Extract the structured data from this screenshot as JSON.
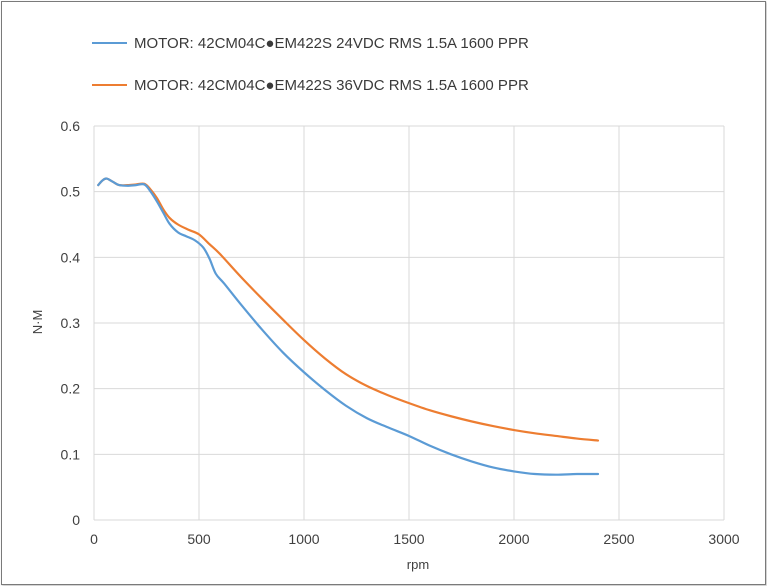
{
  "chart_data": {
    "type": "line",
    "title": "",
    "xlabel": "rpm",
    "ylabel": "N·M",
    "xlim": [
      0,
      3000
    ],
    "ylim": [
      0,
      0.6
    ],
    "x_ticks": [
      "0",
      "500",
      "1000",
      "1500",
      "2000",
      "2500",
      "3000"
    ],
    "y_ticks": [
      "0",
      "0.1",
      "0.2",
      "0.3",
      "0.4",
      "0.5",
      "0.6"
    ],
    "grid": true,
    "legend_position": "top",
    "series": [
      {
        "name": "MOTOR: 42CM04C●EM422S 24VDC RMS 1.5A 1600 PPR",
        "color": "#5b9bd5",
        "x": [
          20,
          40,
          60,
          90,
          120,
          160,
          200,
          240,
          270,
          300,
          330,
          360,
          400,
          440,
          480,
          520,
          550,
          580,
          620,
          700,
          800,
          900,
          1000,
          1100,
          1200,
          1300,
          1400,
          1500,
          1600,
          1700,
          1800,
          1900,
          2000,
          2100,
          2200,
          2300,
          2400
        ],
        "y": [
          0.51,
          0.517,
          0.52,
          0.515,
          0.51,
          0.509,
          0.51,
          0.511,
          0.5,
          0.485,
          0.468,
          0.451,
          0.438,
          0.432,
          0.426,
          0.415,
          0.398,
          0.375,
          0.36,
          0.328,
          0.29,
          0.255,
          0.225,
          0.198,
          0.174,
          0.155,
          0.141,
          0.128,
          0.113,
          0.1,
          0.089,
          0.08,
          0.074,
          0.07,
          0.069,
          0.07,
          0.07
        ]
      },
      {
        "name": "MOTOR: 42CM04C●EM422S 36VDC RMS 1.5A 1600 PPR",
        "color": "#ed7d31",
        "x": [
          20,
          40,
          60,
          90,
          120,
          160,
          200,
          240,
          270,
          300,
          330,
          360,
          400,
          450,
          500,
          550,
          600,
          700,
          800,
          900,
          1000,
          1100,
          1200,
          1300,
          1400,
          1500,
          1600,
          1700,
          1800,
          1900,
          2000,
          2100,
          2200,
          2300,
          2400
        ],
        "y": [
          0.51,
          0.517,
          0.52,
          0.515,
          0.51,
          0.51,
          0.511,
          0.512,
          0.503,
          0.49,
          0.473,
          0.46,
          0.45,
          0.442,
          0.435,
          0.42,
          0.405,
          0.37,
          0.337,
          0.305,
          0.274,
          0.246,
          0.222,
          0.204,
          0.19,
          0.178,
          0.167,
          0.158,
          0.15,
          0.143,
          0.137,
          0.132,
          0.128,
          0.124,
          0.121
        ]
      }
    ]
  }
}
